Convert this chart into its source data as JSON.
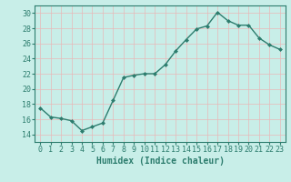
{
  "x": [
    0,
    1,
    2,
    3,
    4,
    5,
    6,
    7,
    8,
    9,
    10,
    11,
    12,
    13,
    14,
    15,
    16,
    17,
    18,
    19,
    20,
    21,
    22,
    23
  ],
  "y": [
    17.5,
    16.3,
    16.1,
    15.8,
    14.5,
    15.0,
    15.5,
    18.5,
    21.5,
    21.8,
    22.0,
    22.0,
    23.2,
    25.0,
    26.5,
    27.9,
    28.3,
    30.1,
    29.0,
    28.4,
    28.4,
    26.7,
    25.8,
    25.2
  ],
  "line_color": "#2d7d6e",
  "marker": "D",
  "marker_size": 2,
  "bg_color": "#c8eee8",
  "grid_color": "#e8b8b8",
  "xlabel": "Humidex (Indice chaleur)",
  "ylabel": "",
  "ylim": [
    13,
    31
  ],
  "yticks": [
    14,
    16,
    18,
    20,
    22,
    24,
    26,
    28,
    30
  ],
  "xlim": [
    -0.5,
    23.5
  ],
  "tick_color": "#2d7d6e",
  "label_color": "#2d7d6e",
  "font_size": 6,
  "xlabel_font_size": 7
}
